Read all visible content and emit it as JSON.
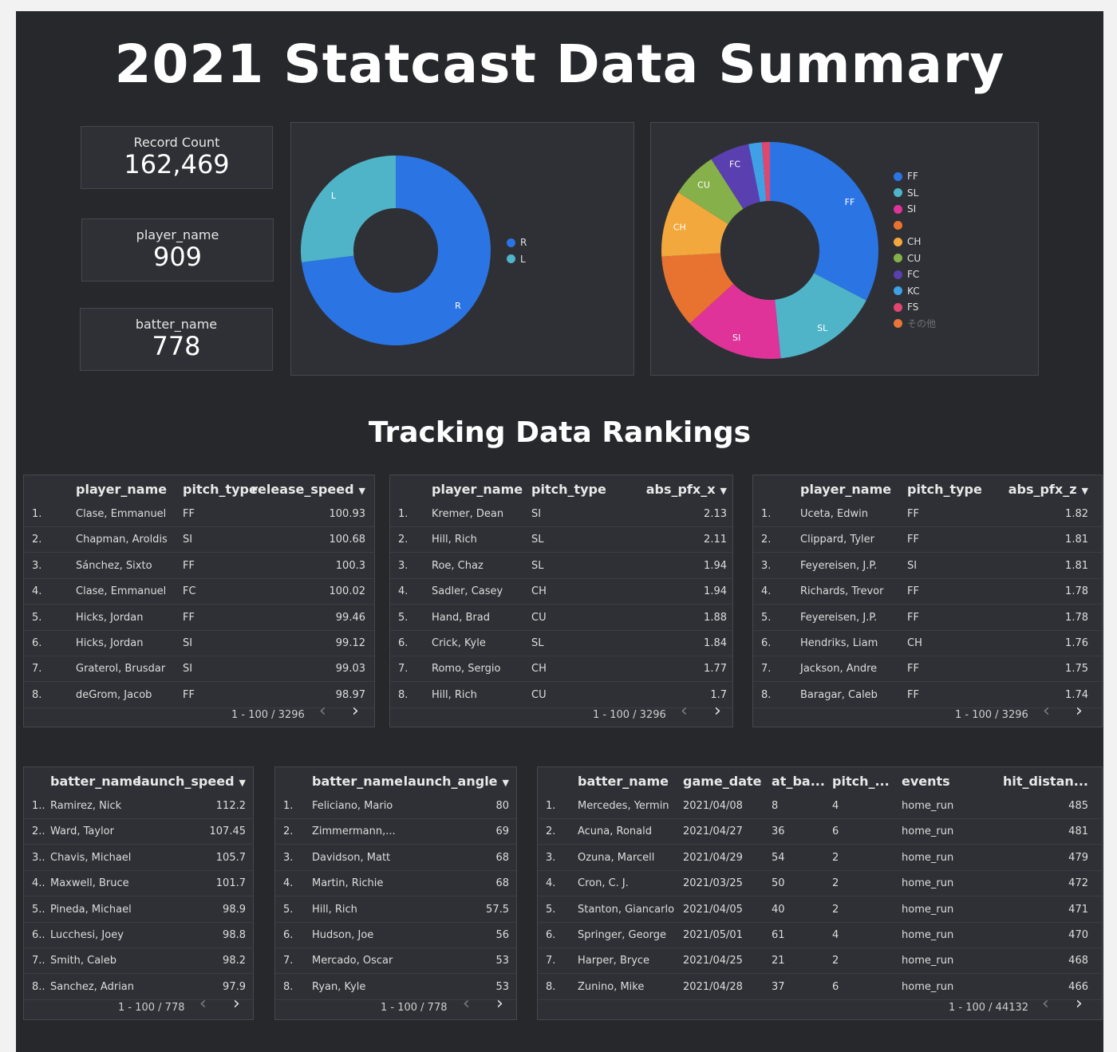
{
  "title": "2021 Statcast Data Summary",
  "subtitle": "Tracking Data Rankings",
  "kpis": [
    {
      "label": "Record Count",
      "value": "162,469"
    },
    {
      "label": "player_name",
      "value": "909"
    },
    {
      "label": "batter_name",
      "value": "778"
    }
  ],
  "chart_data": [
    {
      "type": "pie",
      "donut": true,
      "categories": [
        "R",
        "L"
      ],
      "values": [
        73,
        27
      ],
      "colors": [
        "#2b74e4",
        "#4fb4c8"
      ],
      "legend": [
        "R",
        "L"
      ],
      "legend_position": "right"
    },
    {
      "type": "pie",
      "donut": true,
      "categories": [
        "FF",
        "SL",
        "SI",
        "",
        "CH",
        "CU",
        "FC",
        "KC",
        "FS",
        "その他"
      ],
      "values": [
        33,
        16,
        15,
        11,
        10,
        7,
        6,
        2,
        1.2,
        0
      ],
      "slice_labels": [
        "FF",
        "SL",
        "SI",
        "",
        "CH",
        "CU",
        "FC",
        "",
        "",
        ""
      ],
      "colors": [
        "#2b74e4",
        "#4fb4c8",
        "#e0339a",
        "#e87330",
        "#f2a83c",
        "#86b04a",
        "#5a3fb0",
        "#3fa0e6",
        "#e0476f",
        "#e8763a"
      ],
      "legend": [
        "FF",
        "SL",
        "SI",
        "",
        "CH",
        "CU",
        "FC",
        "KC",
        "FS",
        "その他"
      ],
      "legend_position": "right"
    }
  ],
  "tables": [
    {
      "columns": [
        "player_name",
        "pitch_type",
        "release_speed"
      ],
      "sort_column": "release_speed",
      "rows": [
        [
          "1.",
          "Clase, Emmanuel",
          "FF",
          "100.93"
        ],
        [
          "2.",
          "Chapman, Aroldis",
          "SI",
          "100.68"
        ],
        [
          "3.",
          "Sánchez, Sixto",
          "FF",
          "100.3"
        ],
        [
          "4.",
          "Clase, Emmanuel",
          "FC",
          "100.02"
        ],
        [
          "5.",
          "Hicks, Jordan",
          "FF",
          "99.46"
        ],
        [
          "6.",
          "Hicks, Jordan",
          "SI",
          "99.12"
        ],
        [
          "7.",
          "Graterol, Brusdar",
          "SI",
          "99.03"
        ],
        [
          "8.",
          "deGrom, Jacob",
          "FF",
          "98.97"
        ]
      ],
      "pager": "1 - 100 / 3296"
    },
    {
      "columns": [
        "player_name",
        "pitch_type",
        "abs_pfx_x"
      ],
      "sort_column": "abs_pfx_x",
      "rows": [
        [
          "1.",
          "Kremer, Dean",
          "SI",
          "2.13"
        ],
        [
          "2.",
          "Hill, Rich",
          "SL",
          "2.11"
        ],
        [
          "3.",
          "Roe, Chaz",
          "SL",
          "1.94"
        ],
        [
          "4.",
          "Sadler, Casey",
          "CH",
          "1.94"
        ],
        [
          "5.",
          "Hand, Brad",
          "CU",
          "1.88"
        ],
        [
          "6.",
          "Crick, Kyle",
          "SL",
          "1.84"
        ],
        [
          "7.",
          "Romo, Sergio",
          "CH",
          "1.77"
        ],
        [
          "8.",
          "Hill, Rich",
          "CU",
          "1.7"
        ]
      ],
      "pager": "1 - 100 / 3296"
    },
    {
      "columns": [
        "player_name",
        "pitch_type",
        "abs_pfx_z"
      ],
      "sort_column": "abs_pfx_z",
      "rows": [
        [
          "1.",
          "Uceta, Edwin",
          "FF",
          "1.82"
        ],
        [
          "2.",
          "Clippard, Tyler",
          "FF",
          "1.81"
        ],
        [
          "3.",
          "Feyereisen, J.P.",
          "SI",
          "1.81"
        ],
        [
          "4.",
          "Richards, Trevor",
          "FF",
          "1.78"
        ],
        [
          "5.",
          "Feyereisen, J.P.",
          "FF",
          "1.78"
        ],
        [
          "6.",
          "Hendriks, Liam",
          "CH",
          "1.76"
        ],
        [
          "7.",
          "Jackson, Andre",
          "FF",
          "1.75"
        ],
        [
          "8.",
          "Baragar, Caleb",
          "FF",
          "1.74"
        ]
      ],
      "pager": "1 - 100 / 3296"
    },
    {
      "columns": [
        "batter_name",
        "launch_speed"
      ],
      "sort_column": "launch_speed",
      "rows": [
        [
          "1..",
          "Ramirez, Nick",
          "112.2"
        ],
        [
          "2..",
          "Ward, Taylor",
          "107.45"
        ],
        [
          "3..",
          "Chavis, Michael",
          "105.7"
        ],
        [
          "4..",
          "Maxwell, Bruce",
          "101.7"
        ],
        [
          "5..",
          "Pineda, Michael",
          "98.9"
        ],
        [
          "6..",
          "Lucchesi, Joey",
          "98.8"
        ],
        [
          "7..",
          "Smith, Caleb",
          "98.2"
        ],
        [
          "8..",
          "Sanchez, Adrian",
          "97.9"
        ]
      ],
      "pager": "1 - 100 / 778"
    },
    {
      "columns": [
        "batter_name",
        "launch_angle"
      ],
      "sort_column": "launch_angle",
      "rows": [
        [
          "1.",
          "Feliciano, Mario",
          "80"
        ],
        [
          "2.",
          "Zimmermann,...",
          "69"
        ],
        [
          "3.",
          "Davidson, Matt",
          "68"
        ],
        [
          "4.",
          "Martin, Richie",
          "68"
        ],
        [
          "5.",
          "Hill, Rich",
          "57.5"
        ],
        [
          "6.",
          "Hudson, Joe",
          "56"
        ],
        [
          "7.",
          "Mercado, Oscar",
          "53"
        ],
        [
          "8.",
          "Ryan, Kyle",
          "53"
        ]
      ],
      "pager": "1 - 100 / 778"
    },
    {
      "columns": [
        "batter_name",
        "game_date",
        "at_ba...",
        "pitch_...",
        "events",
        "hit_distan..."
      ],
      "rows": [
        [
          "1.",
          "Mercedes, Yermin",
          "2021/04/08",
          "8",
          "4",
          "home_run",
          "485"
        ],
        [
          "2.",
          "Acuna, Ronald",
          "2021/04/27",
          "36",
          "6",
          "home_run",
          "481"
        ],
        [
          "3.",
          "Ozuna, Marcell",
          "2021/04/29",
          "54",
          "2",
          "home_run",
          "479"
        ],
        [
          "4.",
          "Cron, C. J.",
          "2021/03/25",
          "50",
          "2",
          "home_run",
          "472"
        ],
        [
          "5.",
          "Stanton, Giancarlo",
          "2021/04/05",
          "40",
          "2",
          "home_run",
          "471"
        ],
        [
          "6.",
          "Springer, George",
          "2021/05/01",
          "61",
          "4",
          "home_run",
          "470"
        ],
        [
          "7.",
          "Harper, Bryce",
          "2021/04/25",
          "21",
          "2",
          "home_run",
          "468"
        ],
        [
          "8.",
          "Zunino, Mike",
          "2021/04/28",
          "37",
          "6",
          "home_run",
          "466"
        ]
      ],
      "pager": "1 - 100 / 44132"
    }
  ],
  "icons": {
    "prev": "chevron-left-icon",
    "next": "chevron-right-icon",
    "sort": "caret-down-icon"
  }
}
